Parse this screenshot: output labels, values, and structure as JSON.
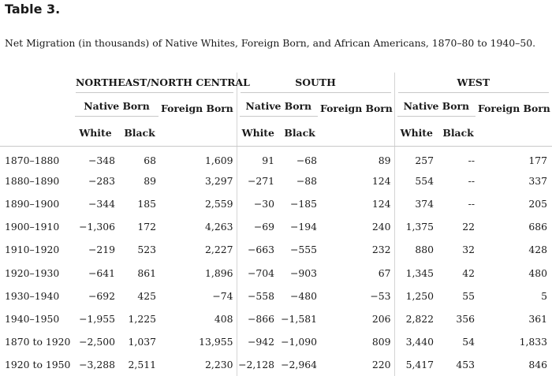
{
  "title": "Table 3.",
  "caption": "Net Migration (in thousands) of Native Whites, Foreign Born, and African Americans, 1870–80 to 1940–50.",
  "headers": {
    "regions": [
      "NORTHEAST/NORTH CENTRAL",
      "SOUTH",
      "WEST"
    ],
    "native_born": "Native Born",
    "foreign_born": "Foreign Born",
    "white": "White",
    "black": "Black"
  },
  "rows": [
    {
      "period": "1870–1880",
      "values": [
        "−348",
        "68",
        "1,609",
        "91",
        "−68",
        "89",
        "257",
        "--",
        "177"
      ]
    },
    {
      "period": "1880–1890",
      "values": [
        "−283",
        "89",
        "3,297",
        "−271",
        "−88",
        "124",
        "554",
        "--",
        "337"
      ]
    },
    {
      "period": "1890–1900",
      "values": [
        "−344",
        "185",
        "2,559",
        "−30",
        "−185",
        "124",
        "374",
        "--",
        "205"
      ]
    },
    {
      "period": "1900–1910",
      "values": [
        "−1,306",
        "172",
        "4,263",
        "−69",
        "−194",
        "240",
        "1,375",
        "22",
        "686"
      ]
    },
    {
      "period": "1910–1920",
      "values": [
        "−219",
        "523",
        "2,227",
        "−663",
        "−555",
        "232",
        "880",
        "32",
        "428"
      ]
    },
    {
      "period": "1920–1930",
      "values": [
        "−641",
        "861",
        "1,896",
        "−704",
        "−903",
        "67",
        "1,345",
        "42",
        "480"
      ]
    },
    {
      "period": "1930–1940",
      "values": [
        "−692",
        "425",
        "−74",
        "−558",
        "−480",
        "−53",
        "1,250",
        "55",
        "5"
      ]
    },
    {
      "period": "1940–1950",
      "values": [
        "−1,955",
        "1,225",
        "408",
        "−866",
        "−1,581",
        "206",
        "2,822",
        "356",
        "361"
      ]
    },
    {
      "period": "1870 to 1920",
      "values": [
        "−2,500",
        "1,037",
        "13,955",
        "−942",
        "−1,090",
        "809",
        "3,440",
        "54",
        "1,833"
      ]
    },
    {
      "period": "1920 to 1950",
      "values": [
        "−3,288",
        "2,511",
        "2,230",
        "−2,128",
        "−2,964",
        "220",
        "5,417",
        "453",
        "846"
      ]
    }
  ]
}
